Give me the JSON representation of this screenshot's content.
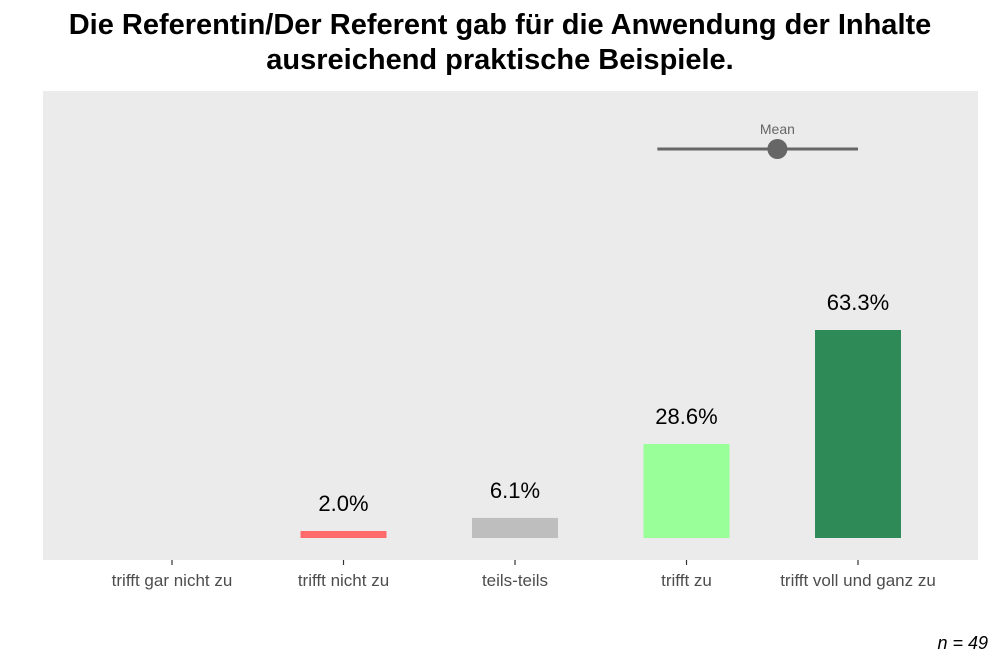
{
  "chart_data": {
    "type": "bar",
    "title": [
      "Die Referentin/Der Referent gab für die Anwendung der Inhalte",
      "ausreichend praktische Beispiele."
    ],
    "categories": [
      "trifft gar nicht zu",
      "trifft nicht zu",
      "teils-teils",
      "trifft zu",
      "trifft voll und ganz zu"
    ],
    "values": [
      0,
      2.0,
      6.1,
      28.6,
      63.3
    ],
    "value_labels": [
      "",
      "2.0%",
      "6.1%",
      "28.6%",
      "63.3%"
    ],
    "colors": [
      "#d7191c",
      "#ff6b6b",
      "#bebebe",
      "#99ff99",
      "#2e8b57"
    ],
    "ylim": [
      0,
      100
    ],
    "grid": false,
    "mean": {
      "label": "Mean",
      "center_category_position": 4.53,
      "range_category_positions": [
        3.83,
        5.0
      ]
    },
    "n_label": "n = 49"
  }
}
